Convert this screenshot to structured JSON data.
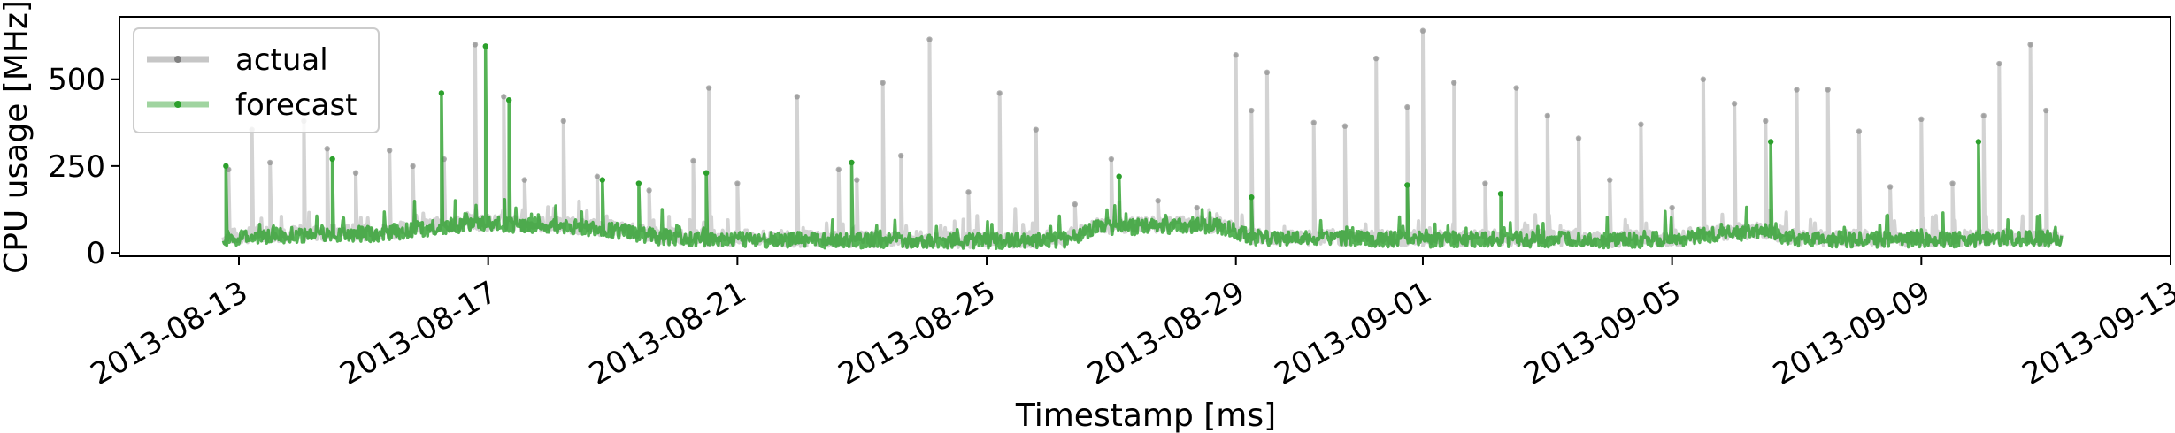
{
  "chart_data": {
    "type": "line",
    "title": "",
    "xlabel": "Timestamp [ms]",
    "ylabel": "CPU usage [MHz]",
    "x_range": [
      "2013-08-11",
      "2013-09-13"
    ],
    "ylim": [
      -10,
      680
    ],
    "x_ticks": [
      "2013-08-13",
      "2013-08-17",
      "2013-08-21",
      "2013-08-25",
      "2013-08-29",
      "2013-09-01",
      "2013-09-05",
      "2013-09-09",
      "2013-09-13"
    ],
    "y_ticks": [
      0,
      250,
      500
    ],
    "grid": false,
    "legend_position": "top-left",
    "series": [
      {
        "name": "actual",
        "color": "#808080",
        "baseline": [
          [
            "2013-08-12T18:00",
            45
          ],
          [
            "2013-08-13T12:00",
            55
          ],
          [
            "2013-08-14T12:00",
            58
          ],
          [
            "2013-08-15T06:00",
            60
          ],
          [
            "2013-08-16T00:00",
            75
          ],
          [
            "2013-08-16T18:00",
            88
          ],
          [
            "2013-08-17T12:00",
            85
          ],
          [
            "2013-08-18T06:00",
            80
          ],
          [
            "2013-08-19T00:00",
            70
          ],
          [
            "2013-08-19T18:00",
            50
          ],
          [
            "2013-08-20T12:00",
            45
          ],
          [
            "2013-08-21T12:00",
            42
          ],
          [
            "2013-08-22T12:00",
            40
          ],
          [
            "2013-08-23T12:00",
            40
          ],
          [
            "2013-08-24T12:00",
            38
          ],
          [
            "2013-08-25T12:00",
            38
          ],
          [
            "2013-08-26T06:00",
            42
          ],
          [
            "2013-08-26T18:00",
            75
          ],
          [
            "2013-08-27T12:00",
            80
          ],
          [
            "2013-08-28T06:00",
            85
          ],
          [
            "2013-08-28T18:00",
            80
          ],
          [
            "2013-08-29T06:00",
            50
          ],
          [
            "2013-08-30T00:00",
            45
          ],
          [
            "2013-08-31T00:00",
            45
          ],
          [
            "2013-09-01T00:00",
            42
          ],
          [
            "2013-09-02T00:00",
            44
          ],
          [
            "2013-09-03T00:00",
            42
          ],
          [
            "2013-09-04T00:00",
            40
          ],
          [
            "2013-09-05T00:00",
            42
          ],
          [
            "2013-09-05T18:00",
            60
          ],
          [
            "2013-09-06T12:00",
            65
          ],
          [
            "2013-09-07T00:00",
            45
          ],
          [
            "2013-09-08T00:00",
            42
          ],
          [
            "2013-09-09T00:00",
            42
          ],
          [
            "2013-09-10T00:00",
            44
          ],
          [
            "2013-09-10T12:00",
            45
          ],
          [
            "2013-09-11T06:00",
            42
          ]
        ],
        "spikes": [
          [
            "2013-08-12T20:00",
            240
          ],
          [
            "2013-08-13T05:00",
            355
          ],
          [
            "2013-08-13T12:00",
            260
          ],
          [
            "2013-08-14T01:00",
            380
          ],
          [
            "2013-08-14T10:00",
            300
          ],
          [
            "2013-08-14T21:00",
            230
          ],
          [
            "2013-08-15T10:00",
            295
          ],
          [
            "2013-08-15T19:00",
            250
          ],
          [
            "2013-08-16T07:00",
            270
          ],
          [
            "2013-08-16T19:00",
            600
          ],
          [
            "2013-08-17T06:00",
            450
          ],
          [
            "2013-08-17T14:00",
            210
          ],
          [
            "2013-08-18T05:00",
            380
          ],
          [
            "2013-08-18T18:00",
            220
          ],
          [
            "2013-08-19T14:00",
            180
          ],
          [
            "2013-08-20T07:00",
            265
          ],
          [
            "2013-08-20T13:00",
            475
          ],
          [
            "2013-08-21T00:00",
            200
          ],
          [
            "2013-08-21T23:00",
            450
          ],
          [
            "2013-08-22T15:00",
            240
          ],
          [
            "2013-08-22T22:00",
            210
          ],
          [
            "2013-08-23T08:00",
            490
          ],
          [
            "2013-08-23T15:00",
            280
          ],
          [
            "2013-08-24T02:00",
            615
          ],
          [
            "2013-08-24T17:00",
            175
          ],
          [
            "2013-08-25T05:00",
            460
          ],
          [
            "2013-08-25T19:00",
            355
          ],
          [
            "2013-08-26T10:00",
            140
          ],
          [
            "2013-08-27T00:00",
            270
          ],
          [
            "2013-08-27T18:00",
            150
          ],
          [
            "2013-08-28T09:00",
            130
          ],
          [
            "2013-08-29T00:00",
            570
          ],
          [
            "2013-08-29T06:00",
            410
          ],
          [
            "2013-08-29T12:00",
            520
          ],
          [
            "2013-08-30T06:00",
            375
          ],
          [
            "2013-08-30T18:00",
            365
          ],
          [
            "2013-08-31T06:00",
            560
          ],
          [
            "2013-08-31T18:00",
            420
          ],
          [
            "2013-09-01T00:00",
            640
          ],
          [
            "2013-09-01T12:00",
            490
          ],
          [
            "2013-09-02T00:00",
            200
          ],
          [
            "2013-09-02T12:00",
            475
          ],
          [
            "2013-09-03T00:00",
            395
          ],
          [
            "2013-09-03T12:00",
            330
          ],
          [
            "2013-09-04T00:00",
            210
          ],
          [
            "2013-09-04T12:00",
            370
          ],
          [
            "2013-09-05T00:00",
            130
          ],
          [
            "2013-09-05T12:00",
            500
          ],
          [
            "2013-09-06T00:00",
            430
          ],
          [
            "2013-09-06T12:00",
            380
          ],
          [
            "2013-09-07T00:00",
            470
          ],
          [
            "2013-09-07T12:00",
            470
          ],
          [
            "2013-09-08T00:00",
            350
          ],
          [
            "2013-09-08T12:00",
            190
          ],
          [
            "2013-09-09T00:00",
            385
          ],
          [
            "2013-09-09T12:00",
            200
          ],
          [
            "2013-09-10T00:00",
            395
          ],
          [
            "2013-09-10T06:00",
            545
          ],
          [
            "2013-09-10T18:00",
            600
          ],
          [
            "2013-09-11T00:00",
            410
          ]
        ]
      },
      {
        "name": "forecast",
        "color": "#2ca02c",
        "baseline": [
          [
            "2013-08-12T18:00",
            40
          ],
          [
            "2013-08-13T12:00",
            50
          ],
          [
            "2013-08-14T12:00",
            52
          ],
          [
            "2013-08-15T06:00",
            55
          ],
          [
            "2013-08-16T00:00",
            70
          ],
          [
            "2013-08-16T18:00",
            82
          ],
          [
            "2013-08-17T12:00",
            80
          ],
          [
            "2013-08-18T06:00",
            75
          ],
          [
            "2013-08-19T00:00",
            65
          ],
          [
            "2013-08-19T18:00",
            45
          ],
          [
            "2013-08-20T12:00",
            40
          ],
          [
            "2013-08-21T12:00",
            38
          ],
          [
            "2013-08-22T12:00",
            36
          ],
          [
            "2013-08-23T12:00",
            36
          ],
          [
            "2013-08-24T12:00",
            35
          ],
          [
            "2013-08-25T12:00",
            35
          ],
          [
            "2013-08-26T06:00",
            38
          ],
          [
            "2013-08-26T18:00",
            70
          ],
          [
            "2013-08-27T12:00",
            75
          ],
          [
            "2013-08-28T06:00",
            80
          ],
          [
            "2013-08-28T18:00",
            75
          ],
          [
            "2013-08-29T06:00",
            45
          ],
          [
            "2013-08-30T00:00",
            40
          ],
          [
            "2013-08-31T00:00",
            40
          ],
          [
            "2013-09-01T00:00",
            38
          ],
          [
            "2013-09-02T00:00",
            40
          ],
          [
            "2013-09-03T00:00",
            38
          ],
          [
            "2013-09-04T00:00",
            36
          ],
          [
            "2013-09-05T00:00",
            38
          ],
          [
            "2013-09-05T18:00",
            55
          ],
          [
            "2013-09-06T12:00",
            60
          ],
          [
            "2013-09-07T00:00",
            40
          ],
          [
            "2013-09-08T00:00",
            38
          ],
          [
            "2013-09-09T00:00",
            38
          ],
          [
            "2013-09-10T00:00",
            40
          ],
          [
            "2013-09-10T12:00",
            42
          ],
          [
            "2013-09-11T06:00",
            38
          ]
        ],
        "spikes": [
          [
            "2013-08-12T19:00",
            250
          ],
          [
            "2013-08-14T12:00",
            270
          ],
          [
            "2013-08-16T06:00",
            460
          ],
          [
            "2013-08-16T23:00",
            595
          ],
          [
            "2013-08-17T08:00",
            440
          ],
          [
            "2013-08-18T20:00",
            210
          ],
          [
            "2013-08-19T10:00",
            200
          ],
          [
            "2013-08-20T12:00",
            230
          ],
          [
            "2013-08-22T20:00",
            260
          ],
          [
            "2013-08-27T03:00",
            220
          ],
          [
            "2013-08-29T06:00",
            160
          ],
          [
            "2013-08-31T18:00",
            195
          ],
          [
            "2013-09-02T06:00",
            170
          ],
          [
            "2013-09-06T14:00",
            320
          ],
          [
            "2013-09-09T22:00",
            320
          ]
        ]
      }
    ]
  }
}
